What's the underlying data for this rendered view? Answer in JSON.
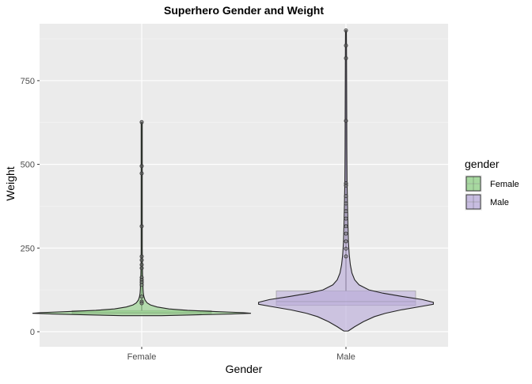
{
  "chart_data": {
    "type": "violin",
    "title": "Superhero Gender and Weight",
    "xlabel": "Gender",
    "ylabel": "Weight",
    "categories": [
      "Female",
      "Male"
    ],
    "ylim": [
      -45,
      920
    ],
    "yticks": [
      0,
      250,
      500,
      750
    ],
    "grid": true,
    "legend": {
      "title": "gender",
      "position": "right",
      "entries": [
        "Female",
        "Male"
      ]
    },
    "series": [
      {
        "name": "Female",
        "color": "#8ecf84",
        "box": {
          "q1": 54,
          "median": 57,
          "q3": 63
        },
        "whisker_max": 626,
        "outliers": [
          626,
          495,
          473,
          315,
          225,
          214,
          200,
          190,
          162,
          155,
          148,
          140,
          105,
          90,
          85
        ],
        "density": [
          [
            48,
            0.18
          ],
          [
            50,
            0.45
          ],
          [
            53,
            0.82
          ],
          [
            55,
            1.0
          ],
          [
            57,
            0.93
          ],
          [
            60,
            0.68
          ],
          [
            64,
            0.42
          ],
          [
            68,
            0.25
          ],
          [
            74,
            0.14
          ],
          [
            80,
            0.08
          ],
          [
            86,
            0.05
          ],
          [
            95,
            0.03
          ],
          [
            105,
            0.02
          ],
          [
            115,
            0.015
          ],
          [
            130,
            0.012
          ],
          [
            150,
            0.012
          ],
          [
            170,
            0.008
          ],
          [
            200,
            0.006
          ],
          [
            250,
            0.005
          ],
          [
            350,
            0.005
          ],
          [
            500,
            0.005
          ],
          [
            626,
            0.005
          ]
        ]
      },
      {
        "name": "Male",
        "color": "#b8a9d9",
        "box": {
          "q1": 79,
          "median": 90,
          "q3": 122
        },
        "whisker_max": 900,
        "outliers": [
          900,
          855,
          817,
          630,
          443,
          437,
          405,
          383,
          360,
          338,
          315,
          293,
          270,
          248,
          225
        ],
        "density": [
          [
            2,
            0.02
          ],
          [
            15,
            0.08
          ],
          [
            30,
            0.16
          ],
          [
            45,
            0.26
          ],
          [
            55,
            0.36
          ],
          [
            65,
            0.5
          ],
          [
            75,
            0.68
          ],
          [
            82,
            0.8
          ],
          [
            88,
            0.8
          ],
          [
            96,
            0.7
          ],
          [
            105,
            0.52
          ],
          [
            115,
            0.34
          ],
          [
            125,
            0.21
          ],
          [
            140,
            0.12
          ],
          [
            155,
            0.08
          ],
          [
            175,
            0.055
          ],
          [
            200,
            0.04
          ],
          [
            230,
            0.03
          ],
          [
            270,
            0.022
          ],
          [
            320,
            0.018
          ],
          [
            380,
            0.014
          ],
          [
            450,
            0.01
          ],
          [
            550,
            0.008
          ],
          [
            650,
            0.007
          ],
          [
            750,
            0.006
          ],
          [
            850,
            0.005
          ],
          [
            900,
            0.004
          ]
        ]
      }
    ]
  }
}
